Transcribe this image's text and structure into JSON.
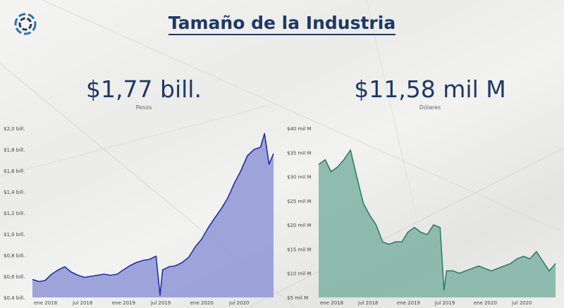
{
  "header": {
    "title": "Tamaño de la Industria",
    "logo_icon": "circular-swirl-logo"
  },
  "kpis": [
    {
      "value": "$1,77 bill.",
      "label": "Pesos"
    },
    {
      "value": "$11,58 mil M",
      "label": "Dólares"
    }
  ],
  "colors": {
    "title": "#1f3864",
    "pesos_line": "#1f2fa8",
    "pesos_fill": "#8f96d6",
    "dollar_line": "#2e7d6b",
    "dollar_fill": "#7fb3a4"
  },
  "chart_data": [
    {
      "type": "area",
      "x_ticks": [
        "ene 2018",
        "jul 2018",
        "ene 2019",
        "jul 2019",
        "ene 2020",
        "jul 2020"
      ],
      "y_ticks": [
        "$0,4 bill.",
        "$0,6 bill.",
        "$0,8 bill.",
        "$1,0 bill.",
        "$1,2 bill.",
        "$1,4 bill.",
        "$1,6 bill.",
        "$1,8 bill.",
        "$2,0 bill."
      ],
      "ylim": [
        0.4,
        2.0
      ],
      "xlim": [
        "2018-01-01",
        "2021-01-31"
      ],
      "series": [
        {
          "points": [
            [
              "2018-01-01",
              0.57
            ],
            [
              "2018-02-01",
              0.55
            ],
            [
              "2018-03-01",
              0.56
            ],
            [
              "2018-04-01",
              0.62
            ],
            [
              "2018-05-01",
              0.66
            ],
            [
              "2018-06-01",
              0.69
            ],
            [
              "2018-07-01",
              0.64
            ],
            [
              "2018-08-01",
              0.61
            ],
            [
              "2018-09-01",
              0.59
            ],
            [
              "2018-10-01",
              0.6
            ],
            [
              "2018-11-01",
              0.61
            ],
            [
              "2018-12-01",
              0.62
            ],
            [
              "2019-01-01",
              0.61
            ],
            [
              "2019-02-01",
              0.62
            ],
            [
              "2019-03-01",
              0.66
            ],
            [
              "2019-04-01",
              0.7
            ],
            [
              "2019-05-01",
              0.73
            ],
            [
              "2019-06-01",
              0.75
            ],
            [
              "2019-07-01",
              0.76
            ],
            [
              "2019-08-01",
              0.79
            ],
            [
              "2019-08-20",
              0.42
            ],
            [
              "2019-09-01",
              0.66
            ],
            [
              "2019-10-01",
              0.69
            ],
            [
              "2019-11-01",
              0.7
            ],
            [
              "2019-12-01",
              0.73
            ],
            [
              "2020-01-01",
              0.78
            ],
            [
              "2020-02-01",
              0.88
            ],
            [
              "2020-03-01",
              0.95
            ],
            [
              "2020-04-01",
              1.06
            ],
            [
              "2020-05-01",
              1.15
            ],
            [
              "2020-06-01",
              1.24
            ],
            [
              "2020-07-01",
              1.34
            ],
            [
              "2020-08-01",
              1.48
            ],
            [
              "2020-09-01",
              1.6
            ],
            [
              "2020-10-01",
              1.74
            ],
            [
              "2020-11-01",
              1.8
            ],
            [
              "2020-12-01",
              1.82
            ],
            [
              "2020-12-20",
              1.95
            ],
            [
              "2021-01-10",
              1.66
            ],
            [
              "2021-01-31",
              1.76
            ]
          ]
        }
      ]
    },
    {
      "type": "area",
      "x_ticks": [
        "ene 2018",
        "jul 2018",
        "ene 2019",
        "jul 2019",
        "ene 2020",
        "jul 2020"
      ],
      "y_ticks": [
        "$5 mil M",
        "$10 mil M",
        "$15 mil M",
        "$20 mil M",
        "$25 mil M",
        "$30 mil M",
        "$35 mil M",
        "$40 mil M"
      ],
      "ylim": [
        5,
        40
      ],
      "xlim": [
        "2018-01-01",
        "2021-01-31"
      ],
      "series": [
        {
          "points": [
            [
              "2018-01-01",
              32.5
            ],
            [
              "2018-02-01",
              33.5
            ],
            [
              "2018-03-01",
              31.0
            ],
            [
              "2018-04-01",
              32.0
            ],
            [
              "2018-05-01",
              33.5
            ],
            [
              "2018-06-01",
              35.5
            ],
            [
              "2018-07-01",
              30.0
            ],
            [
              "2018-08-01",
              24.5
            ],
            [
              "2018-09-01",
              22.0
            ],
            [
              "2018-10-01",
              20.0
            ],
            [
              "2018-11-01",
              16.5
            ],
            [
              "2018-12-01",
              16.0
            ],
            [
              "2019-01-01",
              16.5
            ],
            [
              "2019-02-01",
              16.5
            ],
            [
              "2019-03-01",
              18.5
            ],
            [
              "2019-04-01",
              19.5
            ],
            [
              "2019-05-01",
              18.5
            ],
            [
              "2019-06-01",
              18.0
            ],
            [
              "2019-07-01",
              20.0
            ],
            [
              "2019-08-01",
              19.5
            ],
            [
              "2019-08-20",
              6.5
            ],
            [
              "2019-09-01",
              10.5
            ],
            [
              "2019-10-01",
              10.5
            ],
            [
              "2019-11-01",
              10.0
            ],
            [
              "2019-12-01",
              10.5
            ],
            [
              "2020-01-01",
              11.0
            ],
            [
              "2020-02-01",
              11.5
            ],
            [
              "2020-03-01",
              11.0
            ],
            [
              "2020-04-01",
              10.5
            ],
            [
              "2020-05-01",
              11.0
            ],
            [
              "2020-06-01",
              11.5
            ],
            [
              "2020-07-01",
              12.0
            ],
            [
              "2020-08-01",
              13.0
            ],
            [
              "2020-09-01",
              13.5
            ],
            [
              "2020-10-01",
              13.0
            ],
            [
              "2020-11-01",
              14.5
            ],
            [
              "2020-12-01",
              12.5
            ],
            [
              "2021-01-01",
              10.5
            ],
            [
              "2021-01-31",
              12.0
            ]
          ]
        }
      ]
    }
  ]
}
